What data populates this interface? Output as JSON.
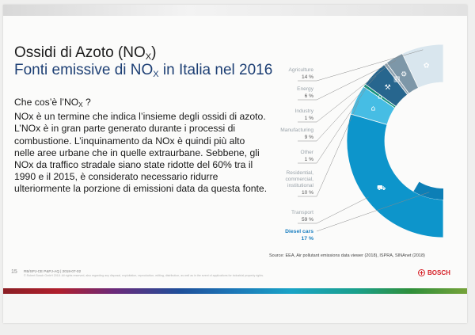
{
  "title": {
    "prefix": "Ossidi di Azoto (NO",
    "sub": "X",
    "suffix": ")"
  },
  "subtitle": {
    "prefix": "Fonti emissive di NO",
    "sub": "X",
    "suffix": " in Italia nel 2016"
  },
  "body": {
    "question_prefix": "Che cos’è l’NO",
    "question_sub": "X",
    "question_suffix": " ?",
    "paragraph": "NOx è un termine che indica l’insieme degli ossidi di azoto. L’NOx è in gran parte generato durante i processi di combustione. L’inquinamento da NOx è quindi più alto nelle aree urbane che in quelle extraurbane. Sebbene, gli NOx da traffico stradale siano state ridotte del 60% tra il 1990 e il 2015, è considerato necessario ridurre ulteriormente la porzione di emissioni data da questa fonte."
  },
  "chart_data": {
    "type": "pie",
    "style": "semi-donut",
    "unit": "%",
    "slices": [
      {
        "label": "Agriculture",
        "value": 14,
        "display": "14 %",
        "color": "#d9e6ee",
        "icon": "tractor-icon"
      },
      {
        "label": "Energy",
        "value": 6,
        "display": "6 %",
        "color": "#7d97a8",
        "icon": "gear-icon"
      },
      {
        "label": "Industry",
        "value": 1,
        "display": "1 %",
        "color": "#8fa2b0",
        "icon": "factory-icon"
      },
      {
        "label": "Manufacturing",
        "value": 9,
        "display": "9 %",
        "color": "#27668e",
        "icon": "wrench-icon"
      },
      {
        "label": "Other",
        "value": 1,
        "display": "1 %",
        "color": "#12917a",
        "icon": "house-icon"
      },
      {
        "label": "Residential, commercial, institutional",
        "label_lines": [
          "Residential,",
          "commercial,",
          "institutional"
        ],
        "value": 10,
        "display": "10 %",
        "color": "#46bde4",
        "icon": "home-icon"
      },
      {
        "label": "Transport",
        "value": 59,
        "display": "59 %",
        "color": "#0d95cb",
        "icon": "truck-icon"
      }
    ],
    "highlight": {
      "label": "Diesel cars",
      "value": 17,
      "display": "17 %",
      "part_of": "Transport",
      "color": "#0d7fb6"
    },
    "label_color": "#9aa3aa",
    "highlight_label_color": "#1a7fc0"
  },
  "source": "Source: EEA, Air pollutant emissions data viewer (2018), ISPRA, SINAnet (2018)",
  "footer": {
    "page_number": "15",
    "reference": "RB/SPJ-CE P&PJ-AQ | 2018-07-02",
    "fine_print": "© Robert Bosch GmbH 2018. All rights reserved, also regarding any disposal, exploitation, reproduction, editing, distribution, as well as in the event of applications for industrial property rights.",
    "brand": "BOSCH",
    "brand_color": "#d61f26"
  }
}
